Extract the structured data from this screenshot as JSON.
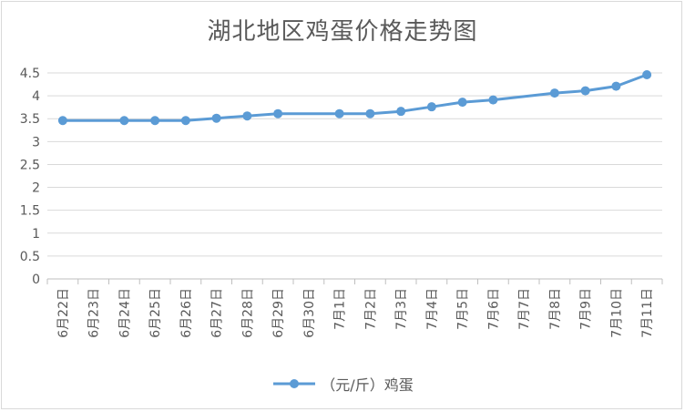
{
  "chart_data": {
    "type": "line",
    "title": "湖北地区鸡蛋价格走势图",
    "xlabel": "",
    "ylabel": "",
    "categories": [
      "6月22日",
      "6月23日",
      "6月24日",
      "6月25日",
      "6月26日",
      "6月27日",
      "6月28日",
      "6月29日",
      "6月30日",
      "7月1日",
      "7月2日",
      "7月3日",
      "7月4日",
      "7月5日",
      "7月6日",
      "7月7日",
      "7月8日",
      "7月9日",
      "7月10日",
      "7月11日"
    ],
    "series": [
      {
        "name": "（元/斤）鸡蛋",
        "values": [
          3.46,
          null,
          3.46,
          3.46,
          3.46,
          3.51,
          3.56,
          3.61,
          null,
          3.61,
          3.61,
          3.66,
          3.76,
          3.86,
          3.91,
          null,
          4.06,
          4.11,
          4.21,
          4.46
        ],
        "color": "#5b9bd5"
      }
    ],
    "ylim": [
      0,
      4.5
    ],
    "yticks": [
      0,
      0.5,
      1,
      1.5,
      2,
      2.5,
      3,
      3.5,
      4,
      4.5
    ],
    "ytick_labels": [
      "0",
      "0.5",
      "1",
      "1.5",
      "2",
      "2.5",
      "3",
      "3.5",
      "4",
      "4.5"
    ],
    "grid": true,
    "legend_position": "bottom"
  }
}
